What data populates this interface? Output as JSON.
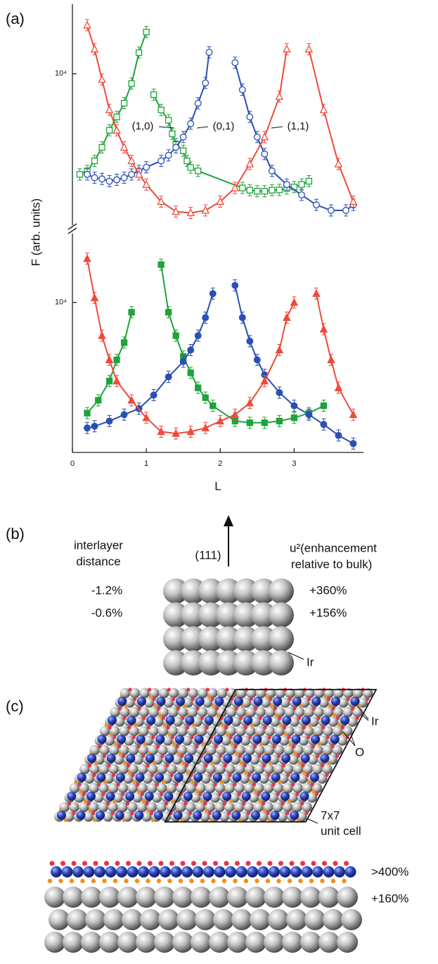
{
  "chart_data": [
    {
      "type": "scatter",
      "panel_label": "(a)",
      "y_label": "F  (arb. units)",
      "ylog": true,
      "xlim": [
        0,
        3.9
      ],
      "ylim": [
        2000,
        20000
      ],
      "yticks": [
        {
          "value": 10000,
          "label": "10⁴"
        }
      ],
      "annotations": [
        "(1,0)",
        "(0,1)",
        "(1,1)"
      ],
      "series": [
        {
          "color": "#1fa33a",
          "marker": "square",
          "filled": false,
          "x": [
            0.1,
            0.2,
            0.3,
            0.4,
            0.5,
            0.6,
            0.7,
            0.8,
            0.9,
            1.0,
            1.05,
            1.1,
            1.2,
            1.3,
            1.35,
            1.4,
            1.5,
            1.55,
            1.6,
            1.7,
            2.3,
            2.4,
            2.5,
            2.6,
            2.7,
            2.8,
            2.9,
            3.0,
            3.1,
            3.2
          ],
          "values": [
            3430,
            3560,
            3960,
            4570,
            5480,
            6320,
            7310,
            9000,
            12500,
            15560,
            null,
            8000,
            6800,
            6100,
            5280,
            4740,
            4410,
            3960,
            3690,
            3560,
            2970,
            2900,
            2870,
            2870,
            2900,
            2910,
            2950,
            3000,
            3080,
            3190
          ]
        },
        {
          "color": "#2a4fb5",
          "marker": "circle",
          "filled": false,
          "x": [
            0.2,
            0.3,
            0.4,
            0.5,
            0.6,
            0.7,
            0.8,
            0.9,
            1.0,
            1.2,
            1.3,
            1.4,
            1.5,
            1.6,
            1.7,
            1.8,
            1.85,
            2.0,
            2.2,
            2.3,
            2.4,
            2.5,
            2.6,
            2.7,
            2.9,
            3.1,
            3.3,
            3.5,
            3.7,
            3.8
          ],
          "values": [
            3430,
            3310,
            3270,
            3190,
            3240,
            3310,
            3430,
            3560,
            3700,
            3960,
            4200,
            4570,
            5100,
            5880,
            7300,
            9060,
            12540,
            null,
            11240,
            8430,
            6320,
            5100,
            4260,
            3560,
            3080,
            2760,
            2480,
            2340,
            2340,
            2480
          ]
        },
        {
          "color": "#ef4a3a",
          "marker": "triangle",
          "filled": false,
          "x": [
            0.2,
            0.3,
            0.4,
            0.5,
            0.6,
            0.7,
            0.8,
            0.9,
            1.0,
            1.2,
            1.4,
            1.6,
            1.8,
            2.0,
            2.2,
            2.4,
            2.6,
            2.8,
            2.9,
            3.05,
            3.2,
            3.4,
            3.6,
            3.8
          ],
          "values": [
            16740,
            12980,
            9400,
            6810,
            5480,
            4570,
            3960,
            3430,
            3080,
            2570,
            2310,
            2280,
            2340,
            2570,
            2970,
            3830,
            5100,
            7840,
            12980,
            null,
            12980,
            6810,
            3830,
            2570
          ]
        }
      ]
    },
    {
      "type": "scatter",
      "x_label": "L",
      "ylog": true,
      "xlim": [
        0,
        3.9
      ],
      "xticks": [
        0,
        1,
        2,
        3
      ],
      "ylim": [
        2000,
        20000
      ],
      "yticks": [
        {
          "value": 10000,
          "label": "10⁴"
        }
      ],
      "series": [
        {
          "color": "#1fa33a",
          "marker": "square",
          "filled": true,
          "x": [
            0.2,
            0.35,
            0.5,
            0.6,
            0.7,
            0.8,
            1.0,
            1.2,
            1.3,
            1.4,
            1.5,
            1.6,
            1.7,
            1.8,
            1.9,
            2.2,
            2.4,
            2.6,
            2.8,
            3.0,
            3.2,
            3.4
          ],
          "values": [
            3050,
            3500,
            4300,
            5400,
            6500,
            9000,
            null,
            15000,
            9000,
            7000,
            5600,
            4700,
            4000,
            3600,
            3300,
            2800,
            2750,
            2750,
            2800,
            2900,
            3050,
            3300
          ]
        },
        {
          "color": "#2a4fb5",
          "marker": "circle",
          "filled": true,
          "x": [
            0.2,
            0.3,
            0.5,
            0.7,
            0.9,
            1.1,
            1.3,
            1.5,
            1.6,
            1.7,
            1.8,
            1.9,
            2.0,
            2.2,
            2.3,
            2.4,
            2.5,
            2.6,
            2.8,
            3.0,
            3.2,
            3.4,
            3.6,
            3.8
          ],
          "values": [
            2600,
            2650,
            2800,
            3000,
            3200,
            3700,
            4500,
            5300,
            6000,
            7000,
            8500,
            11000,
            null,
            12000,
            8500,
            6600,
            5400,
            4600,
            3800,
            3300,
            3000,
            2700,
            2400,
            2200
          ]
        },
        {
          "color": "#ef4a3a",
          "marker": "triangle",
          "filled": true,
          "x": [
            0.2,
            0.3,
            0.4,
            0.5,
            0.6,
            0.8,
            1.0,
            1.2,
            1.4,
            1.6,
            1.8,
            2.0,
            2.2,
            2.4,
            2.6,
            2.8,
            2.9,
            3.0,
            3.15,
            3.3,
            3.4,
            3.5,
            3.6,
            3.8
          ],
          "values": [
            16000,
            10500,
            7000,
            5400,
            4300,
            3500,
            2900,
            2500,
            2450,
            2500,
            2600,
            2800,
            3000,
            3400,
            4300,
            6000,
            8500,
            10000,
            null,
            11000,
            7500,
            5400,
            4000,
            3000
          ]
        }
      ]
    }
  ],
  "panel_b": {
    "label": "(b)",
    "left_heading": [
      "interlayer",
      "distance"
    ],
    "left_values": [
      "-1.2%",
      "-0.6%"
    ],
    "direction": "(111)",
    "right_heading": [
      "u²(enhancement",
      "relative to bulk)"
    ],
    "right_values": [
      "+360%",
      "+156%"
    ],
    "atom_label": "Ir"
  },
  "panel_c": {
    "label": "(c)",
    "atom_labels": [
      "Ir",
      "O"
    ],
    "cell_label": [
      "7x7",
      "unit cell"
    ],
    "values": [
      ">400%",
      "+160%"
    ]
  }
}
